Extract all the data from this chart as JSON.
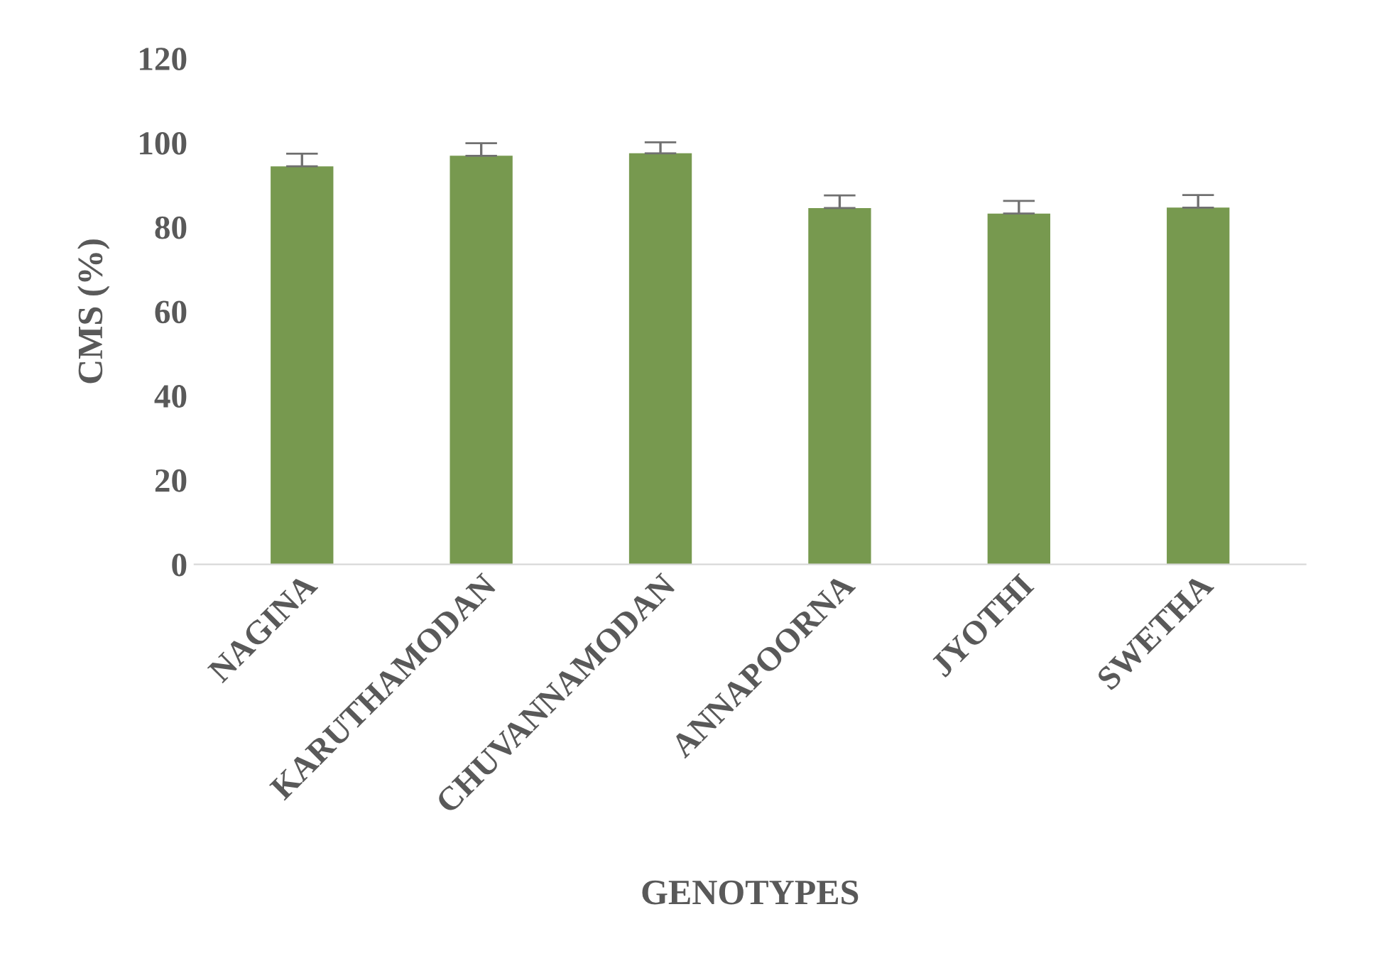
{
  "chart_data": {
    "type": "bar",
    "xlabel": "GENOTYPES",
    "ylabel": "CMS (%)",
    "categories": [
      "NAGINA",
      "KARUTHAMODAN",
      "CHUVANNAMODAN",
      "ANNAPOORNA",
      "JYOTHI",
      "SWETHA"
    ],
    "values": [
      94.4,
      96.9,
      97.5,
      84.5,
      83.2,
      84.6
    ],
    "errors": [
      3,
      3,
      2.6,
      3,
      3,
      3
    ],
    "color": "#77994f",
    "ylim": [
      0,
      120
    ],
    "yticks": [
      0,
      20,
      40,
      60,
      80,
      100,
      120
    ],
    "grid": false
  }
}
